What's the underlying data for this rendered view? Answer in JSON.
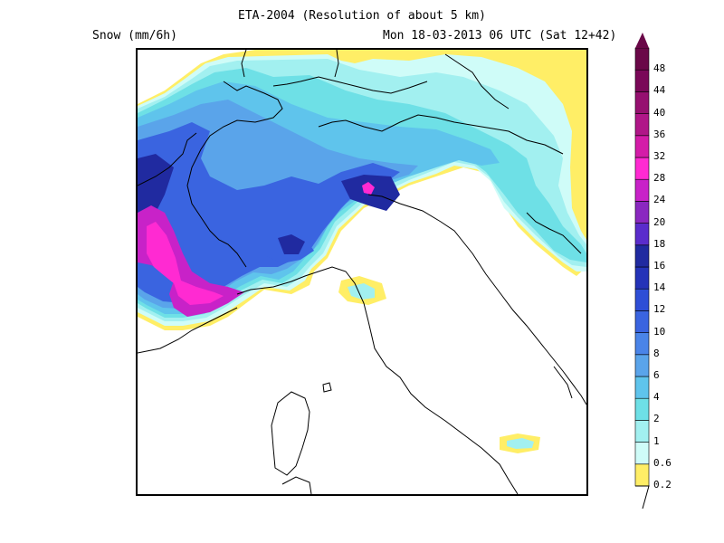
{
  "header": {
    "title": "ETA-2004 (Resolution of about 5 km)",
    "variable": "Snow (mm/6h)",
    "valid_time": "Mon 18-03-2013 06 UTC (Sat 12+42)"
  },
  "legend": {
    "levels": [
      "0.2",
      "0.6",
      "1",
      "2",
      "4",
      "6",
      "8",
      "10",
      "12",
      "14",
      "16",
      "18",
      "20",
      "24",
      "28",
      "32",
      "36",
      "40",
      "44",
      "48"
    ],
    "colors": [
      "#ffee66",
      "#cffcf8",
      "#a2f0f0",
      "#6ee0e6",
      "#5fc4ec",
      "#5aa4ea",
      "#4a84e8",
      "#3a64e0",
      "#2e4ed6",
      "#2433b8",
      "#202aa0",
      "#5a2ccc",
      "#8a28c0",
      "#c822c8",
      "#ff2ad2",
      "#d41ca8",
      "#b01688",
      "#961070",
      "#7a0858",
      "#6a0848"
    ]
  },
  "map": {
    "fields": [
      {
        "name": "field-light",
        "level": "0.6",
        "color": "#cffcf8"
      },
      {
        "name": "field-1",
        "level": "1",
        "color": "#a2f0f0"
      },
      {
        "name": "field-2",
        "level": "2",
        "color": "#6ee0e6"
      },
      {
        "name": "field-4",
        "level": "4",
        "color": "#5fc4ec"
      },
      {
        "name": "field-6",
        "level": "6",
        "color": "#5aa4ea"
      },
      {
        "name": "field-10",
        "level": "10",
        "color": "#3a64e0"
      },
      {
        "name": "field-16",
        "level": "16",
        "color": "#202aa0"
      },
      {
        "name": "field-24",
        "level": "24",
        "color": "#c822c8"
      },
      {
        "name": "field-28",
        "level": "28",
        "color": "#ff2ad2"
      }
    ]
  }
}
